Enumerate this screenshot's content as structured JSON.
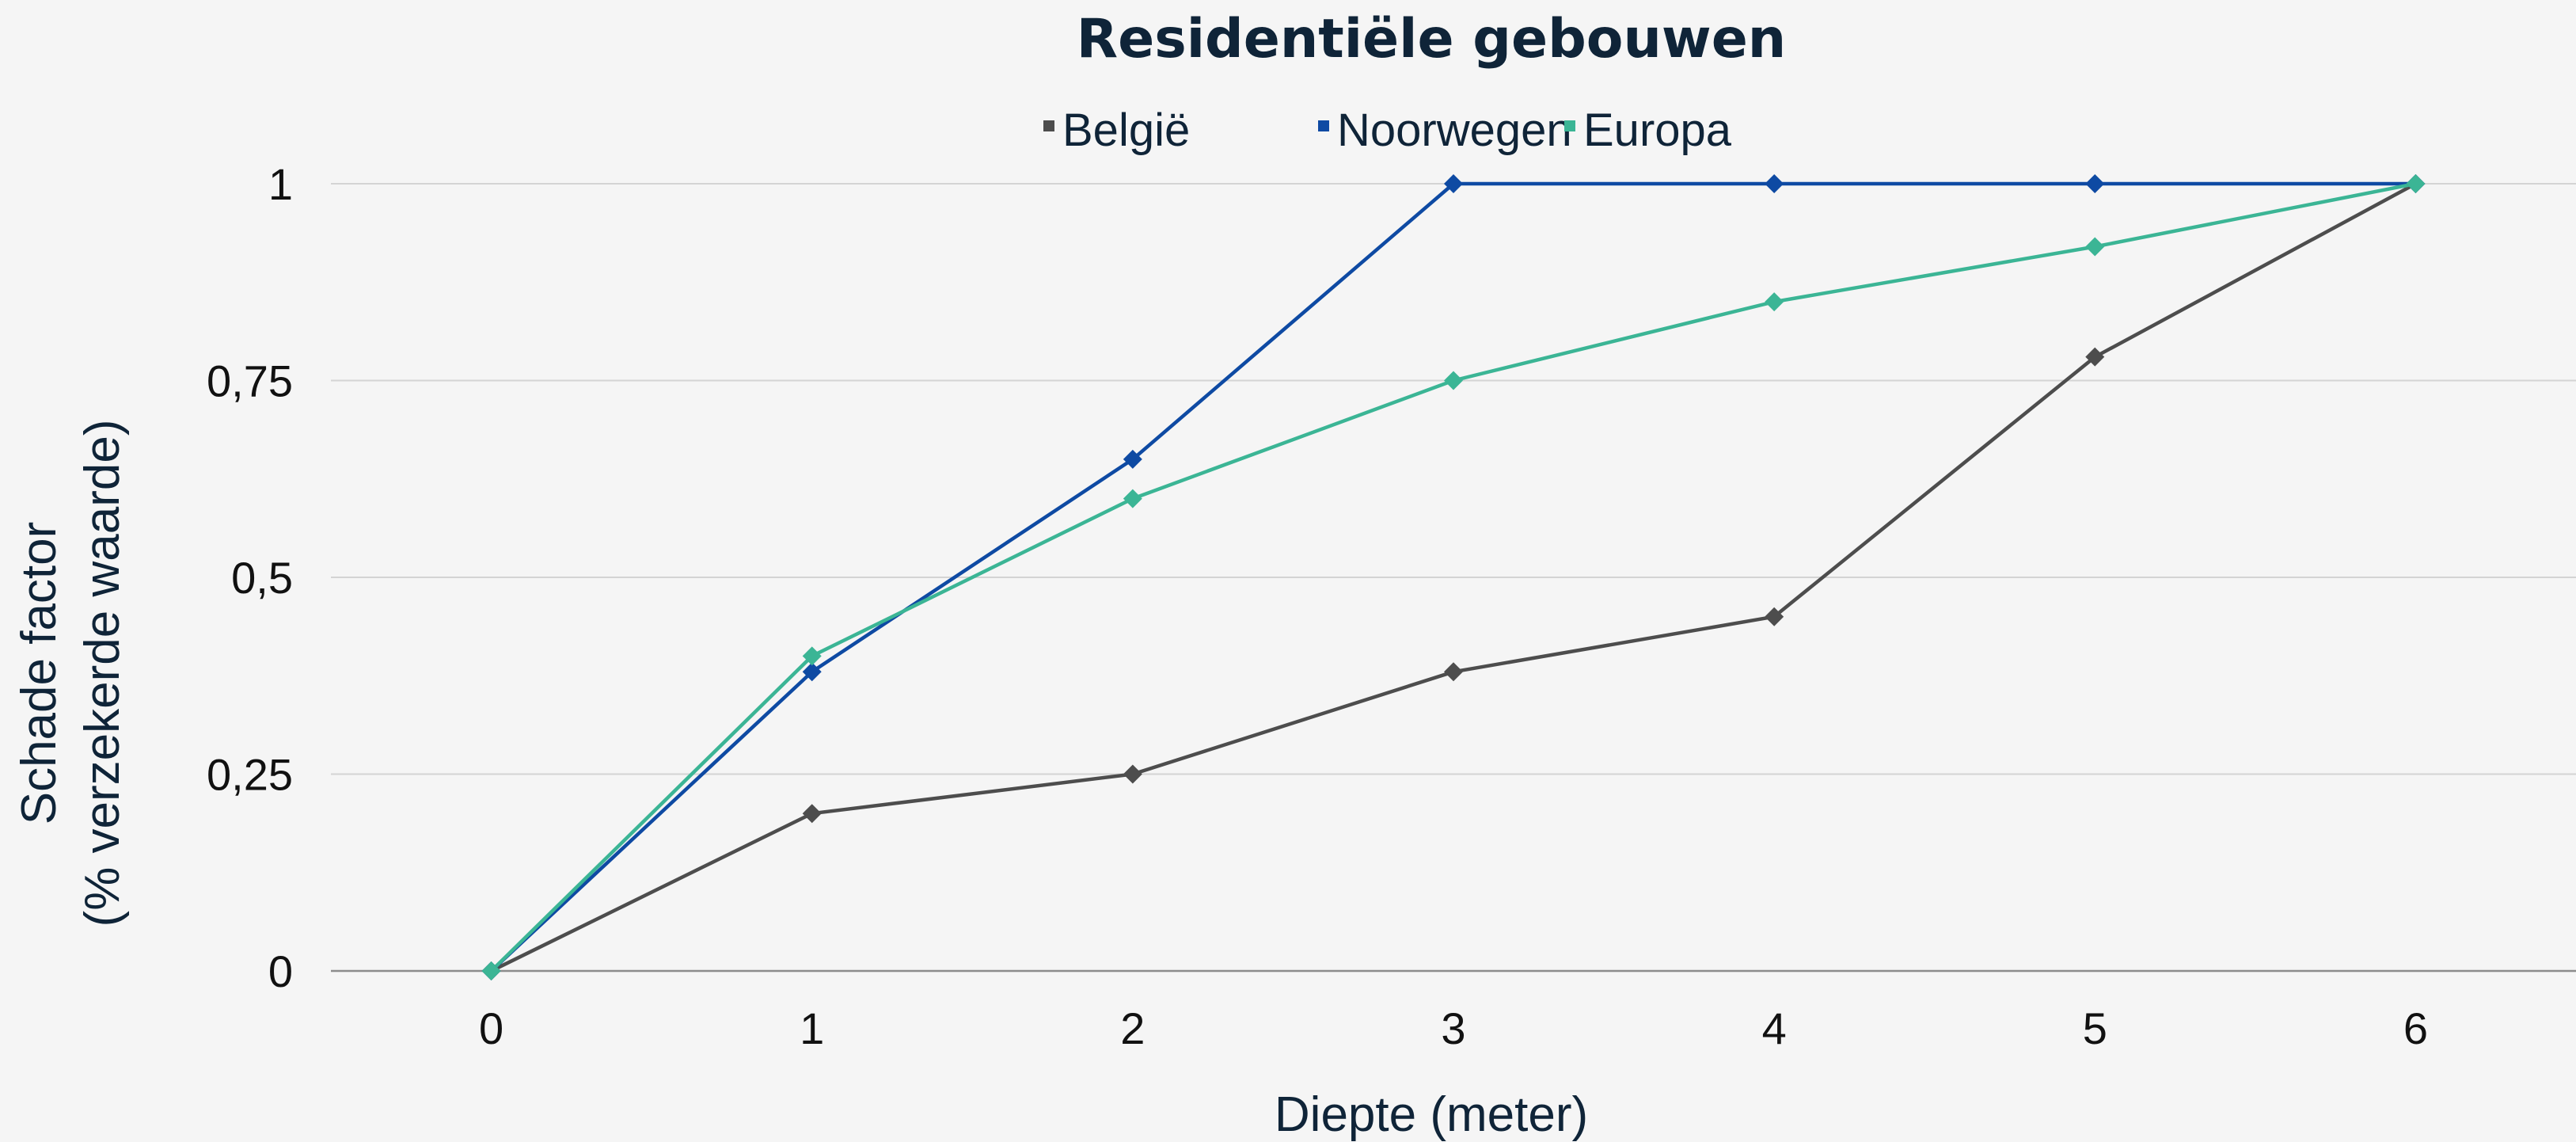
{
  "chart_data": {
    "type": "line",
    "title": "Residentiële gebouwen",
    "xlabel": "Diepte (meter)",
    "ylabel": [
      "Schade factor",
      "(% verzekerde waarde)"
    ],
    "x": [
      0,
      1,
      2,
      3,
      4,
      5,
      6
    ],
    "x_tick_labels": [
      "0",
      "1",
      "2",
      "3",
      "4",
      "5",
      "6"
    ],
    "xlim": [
      -0.5,
      6.5
    ],
    "ylim": [
      0,
      1
    ],
    "y_ticks": [
      0,
      0.25,
      0.5,
      0.75,
      1
    ],
    "y_tick_labels": [
      "0",
      "0,25",
      "0,5",
      "0,75",
      "1"
    ],
    "grid": true,
    "legend_position": "top-center",
    "series": [
      {
        "name": "België",
        "color": "#4d4d4d",
        "marker": "diamond",
        "values": [
          0,
          0.2,
          0.25,
          0.38,
          0.45,
          0.78,
          1
        ]
      },
      {
        "name": "Noorwegen",
        "color": "#0e4aa3",
        "marker": "diamond",
        "values": [
          0,
          0.38,
          0.65,
          1,
          1,
          1,
          1
        ]
      },
      {
        "name": "Europa",
        "color": "#3bb595",
        "marker": "diamond",
        "values": [
          0,
          0.4,
          0.6,
          0.75,
          0.85,
          0.92,
          1
        ]
      }
    ]
  }
}
